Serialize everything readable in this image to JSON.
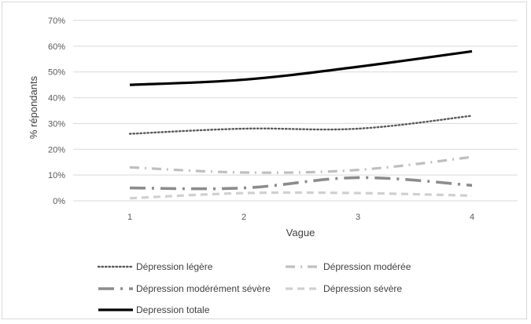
{
  "chart_data": {
    "type": "line",
    "title": "",
    "xlabel": "Vague",
    "ylabel": "% répondants",
    "x": [
      1,
      2,
      3,
      4
    ],
    "x_tick_labels": [
      "1",
      "2",
      "3",
      "4"
    ],
    "ylim": [
      0,
      70
    ],
    "y_tick_labels": [
      "0%",
      "10%",
      "20%",
      "30%",
      "40%",
      "50%",
      "60%",
      "70%"
    ],
    "grid": true,
    "legend_position": "bottom",
    "series": [
      {
        "name": "Dépression légère",
        "values": [
          26,
          28,
          28,
          33
        ],
        "color": "#595959",
        "style": "dotted"
      },
      {
        "name": "Dépression modérée",
        "values": [
          13,
          11,
          12,
          17
        ],
        "color": "#bfbfbf",
        "style": "dash-dot"
      },
      {
        "name": "Dépression modérément sévère",
        "values": [
          5,
          5,
          9,
          6
        ],
        "color": "#8c8c8c",
        "style": "long-dash-dot"
      },
      {
        "name": "Dépression sévère",
        "values": [
          1,
          3,
          3,
          2
        ],
        "color": "#d0d0d0",
        "style": "dashed"
      },
      {
        "name": "Depression totale",
        "values": [
          45,
          47,
          52,
          58
        ],
        "color": "#000000",
        "style": "solid"
      }
    ]
  }
}
